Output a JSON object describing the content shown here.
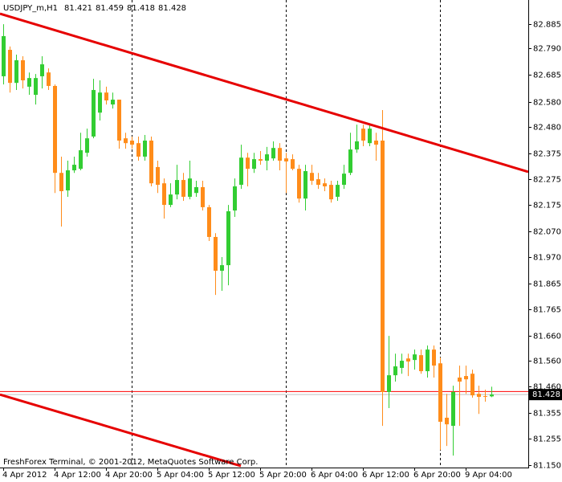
{
  "chart_data": {
    "type": "candlestick",
    "title": "USDJPY_m,H1",
    "footer": "FreshForex Terminal, © 2001-2012, MetaQuotes Software Corp.",
    "categories": [
      "4 Apr 2012",
      null,
      null,
      null,
      null,
      null,
      null,
      null,
      "4 Apr 12:00",
      null,
      null,
      null,
      null,
      null,
      null,
      null,
      "4 Apr 20:00",
      null,
      null,
      null,
      null,
      null,
      null,
      null,
      "5 Apr 04:00",
      null,
      null,
      null,
      null,
      null,
      null,
      null,
      "5 Apr 12:00",
      null,
      null,
      null,
      null,
      null,
      null,
      null,
      "5 Apr 20:00",
      null,
      null,
      null,
      null,
      null,
      null,
      null,
      "6 Apr 04:00",
      null,
      null,
      null,
      null,
      null,
      null,
      null,
      "6 Apr 12:00",
      null,
      null,
      null,
      null,
      null,
      null,
      null,
      "6 Apr 20:00",
      null,
      null,
      null,
      null,
      null,
      null,
      null,
      "9 Apr 04:00",
      null,
      null,
      null,
      null
    ],
    "open": [
      82.68,
      82.784,
      82.654,
      82.743,
      82.639,
      82.607,
      82.68,
      82.695,
      82.642,
      82.3,
      82.231,
      82.31,
      82.316,
      82.379,
      82.443,
      82.537,
      82.616,
      82.569,
      82.588,
      82.436,
      82.427,
      82.417,
      82.364,
      82.427,
      82.323,
      82.259,
      82.174,
      82.215,
      82.272,
      82.206,
      82.221,
      82.244,
      82.165,
      82.048,
      81.915,
      81.937,
      82.152,
      82.253,
      82.36,
      82.316,
      82.354,
      82.348,
      82.357,
      82.398,
      82.357,
      82.354,
      82.316,
      82.199,
      82.3,
      82.275,
      82.259,
      82.253,
      82.206,
      82.253,
      82.3,
      82.392,
      82.474,
      82.417,
      82.427,
      82.427,
      81.438,
      81.504,
      81.533,
      81.57,
      81.564,
      81.583,
      81.52,
      81.605,
      81.551,
      81.337,
      81.305,
      81.495,
      81.501,
      81.51,
      81.431,
      81.422,
      81.421
    ],
    "high": [
      82.885,
      82.797,
      82.765,
      82.759,
      82.695,
      82.689,
      82.759,
      82.711,
      82.648,
      82.364,
      82.348,
      82.364,
      82.458,
      82.474,
      82.67,
      82.664,
      82.639,
      82.616,
      82.588,
      82.458,
      82.443,
      82.443,
      82.449,
      82.443,
      82.348,
      82.278,
      82.259,
      82.332,
      82.3,
      82.348,
      82.269,
      82.269,
      82.174,
      82.063,
      81.969,
      82.174,
      82.278,
      82.411,
      82.379,
      82.379,
      82.386,
      82.402,
      82.424,
      82.417,
      82.379,
      82.373,
      82.332,
      82.332,
      82.332,
      82.3,
      82.278,
      82.269,
      82.269,
      82.332,
      82.458,
      82.49,
      82.49,
      82.49,
      82.458,
      82.547,
      81.659,
      81.589,
      81.589,
      81.589,
      81.605,
      81.605,
      81.621,
      81.621,
      81.574,
      81.431,
      81.463,
      81.542,
      81.542,
      81.526,
      81.463,
      81.447,
      81.459
    ],
    "low": [
      82.648,
      82.616,
      82.626,
      82.632,
      82.607,
      82.569,
      82.632,
      82.626,
      82.221,
      82.089,
      82.206,
      82.3,
      82.31,
      82.364,
      82.436,
      82.506,
      82.569,
      82.553,
      82.395,
      82.395,
      82.395,
      82.348,
      82.348,
      82.247,
      82.221,
      82.12,
      82.165,
      82.196,
      82.19,
      82.196,
      82.206,
      82.152,
      82.032,
      81.82,
      81.836,
      81.858,
      82.127,
      82.237,
      82.247,
      82.3,
      82.332,
      82.31,
      82.348,
      82.31,
      82.221,
      82.31,
      82.183,
      82.152,
      82.253,
      82.237,
      82.228,
      82.183,
      82.19,
      82.237,
      82.291,
      82.379,
      82.405,
      82.405,
      82.348,
      81.305,
      81.375,
      81.479,
      81.51,
      81.501,
      81.526,
      81.51,
      81.495,
      81.495,
      81.21,
      81.226,
      81.188,
      81.305,
      81.431,
      81.416,
      81.352,
      81.4,
      81.418
    ],
    "close": [
      82.838,
      82.654,
      82.743,
      82.664,
      82.673,
      82.673,
      82.727,
      82.642,
      82.3,
      82.228,
      82.31,
      82.332,
      82.389,
      82.436,
      82.626,
      82.616,
      82.585,
      82.588,
      82.427,
      82.417,
      82.411,
      82.364,
      82.427,
      82.259,
      82.253,
      82.174,
      82.215,
      82.272,
      82.206,
      82.278,
      82.244,
      82.165,
      82.048,
      81.915,
      81.937,
      82.149,
      82.247,
      82.36,
      82.316,
      82.354,
      82.348,
      82.373,
      82.398,
      82.348,
      82.345,
      82.316,
      82.199,
      82.307,
      82.269,
      82.253,
      82.247,
      82.196,
      82.253,
      82.297,
      82.392,
      82.424,
      82.427,
      82.474,
      82.411,
      81.438,
      81.504,
      81.539,
      81.561,
      81.558,
      81.586,
      81.52,
      81.605,
      81.542,
      81.321,
      81.311,
      81.438,
      81.479,
      81.488,
      81.425,
      81.419,
      81.419,
      81.428
    ],
    "up_color": "#32cd32",
    "down_color": "#ff8c1a",
    "ylim": [
      81.141,
      82.98
    ],
    "yticks": [
      82.885,
      {
        "value": 82.79,
        "label": "82.790"
      },
      82.685,
      {
        "value": 82.58,
        "label": "82.580"
      },
      {
        "value": 82.48,
        "label": "82.480"
      },
      82.375,
      82.275,
      82.175,
      {
        "value": 82.07,
        "label": "82.070"
      },
      {
        "value": 81.97,
        "label": "81.970"
      },
      81.865,
      81.765,
      {
        "value": 81.66,
        "label": "81.660"
      },
      {
        "value": 81.56,
        "label": "81.560"
      },
      {
        "value": 81.46,
        "label": "81.460"
      },
      81.355,
      81.255,
      {
        "value": 81.15,
        "label": "81.150"
      }
    ],
    "trendlines": [
      {
        "start": [
          -0.5,
          82.926
        ],
        "end": [
          81.75,
          82.304
        ]
      },
      {
        "start": [
          -0.5,
          81.428
        ],
        "end": [
          37,
          81.147
        ]
      }
    ],
    "trendline_color": "#e60000",
    "level_line": 81.44,
    "level_color": "#ff0000",
    "current_price": 81.428
  }
}
